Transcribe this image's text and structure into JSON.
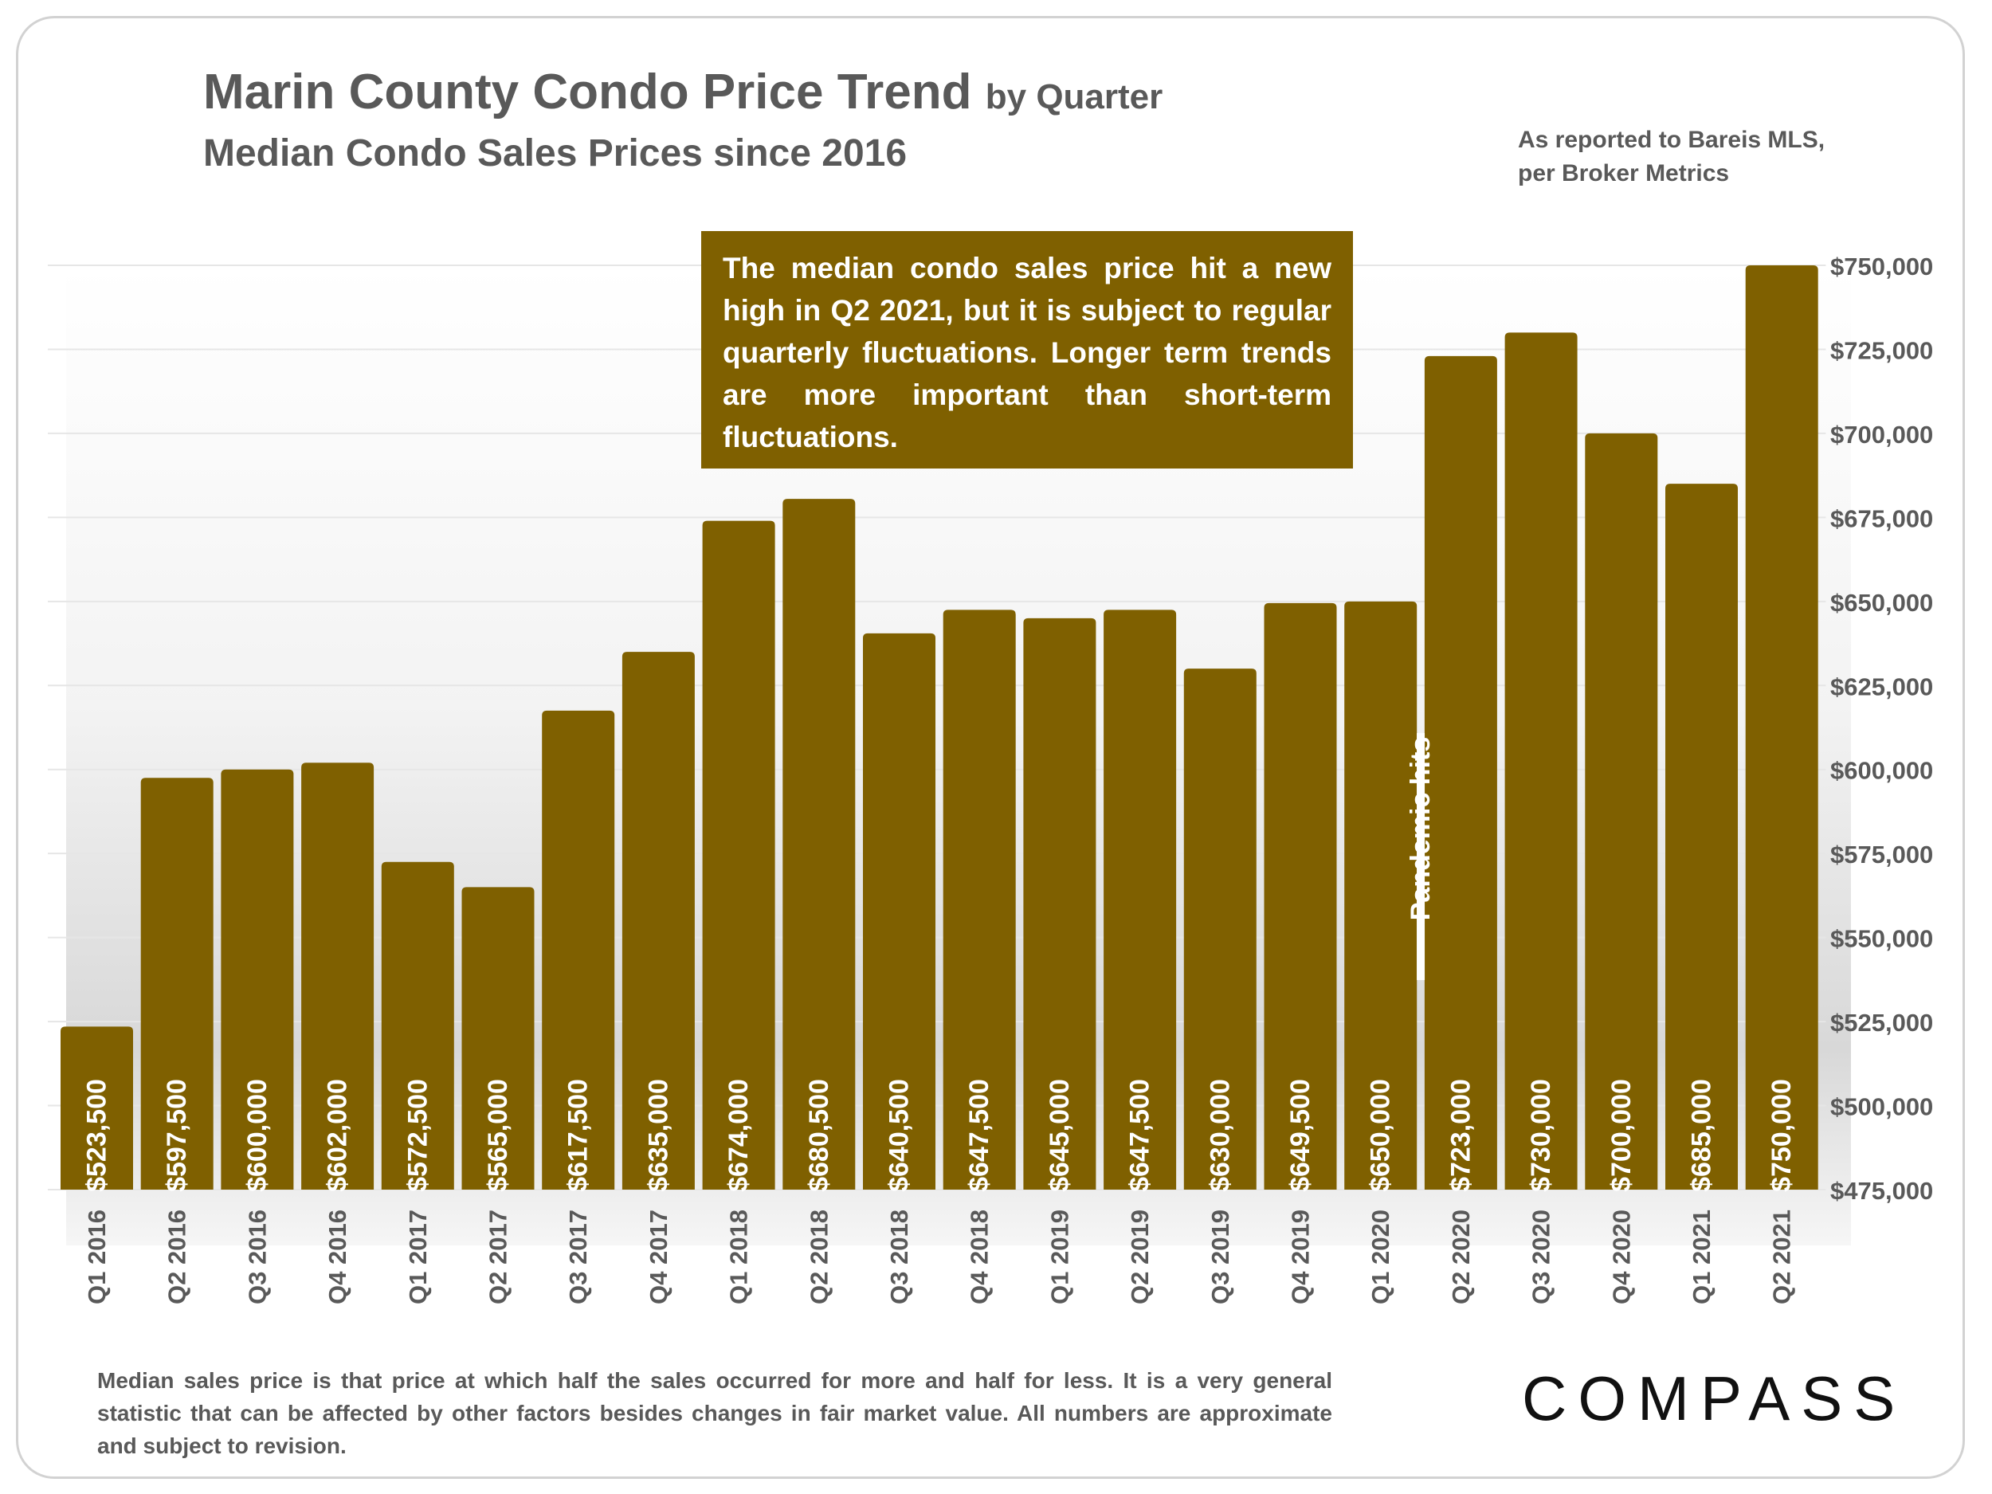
{
  "title": "Marin County Condo Price Trend",
  "title_suffix": "by Quarter",
  "subtitle": "Median Condo Sales Prices since 2016",
  "source_note": "As reported to Bareis MLS, per Broker Metrics",
  "callout": "The median condo sales price hit a new high in Q2 2021, but it is subject to regular quarterly fluctuations. Longer term trends are more important than short-term fluctuations.",
  "footnote": "Median sales price is that price at which half the sales occurred for more and half for less. It is a very general statistic that can be affected by other factors besides changes in fair market value. All numbers are approximate and subject to revision.",
  "logo_text": "COMPASS",
  "chart_data": {
    "type": "bar",
    "categories": [
      "Q1 2016",
      "Q2 2016",
      "Q3 2016",
      "Q4 2016",
      "Q1 2017",
      "Q2 2017",
      "Q3 2017",
      "Q4 2017",
      "Q1 2018",
      "Q2 2018",
      "Q3 2018",
      "Q4 2018",
      "Q1 2019",
      "Q2 2019",
      "Q3 2019",
      "Q4 2019",
      "Q1 2020",
      "Q2 2020",
      "Q3 2020",
      "Q4 2020",
      "Q1 2021",
      "Q2 2021"
    ],
    "values": [
      523500,
      597500,
      600000,
      602000,
      572500,
      565000,
      617500,
      635000,
      674000,
      680500,
      640500,
      647500,
      645000,
      647500,
      630000,
      649500,
      650000,
      723000,
      730000,
      700000,
      685000,
      750000
    ],
    "data_labels": [
      "$523,500",
      "$597,500",
      "$600,000",
      "$602,000",
      "$572,500",
      "$565,000",
      "$617,500",
      "$635,000",
      "$674,000",
      "$680,500",
      "$640,500",
      "$647,500",
      "$645,000",
      "$647,500",
      "$630,000",
      "$649,500",
      "$650,000",
      "$723,000",
      "$730,000",
      "$700,000",
      "$685,000",
      "$750,000"
    ],
    "ylim": [
      475000,
      750000
    ],
    "y_ticks": [
      475000,
      500000,
      525000,
      550000,
      575000,
      600000,
      625000,
      650000,
      675000,
      700000,
      725000,
      750000
    ],
    "y_tick_labels": [
      "$475,000",
      "$500,000",
      "$525,000",
      "$550,000",
      "$575,000",
      "$600,000",
      "$625,000",
      "$650,000",
      "$675,000",
      "$700,000",
      "$725,000",
      "$750,000"
    ],
    "y_axis_position": "right",
    "annotation": {
      "text": "Pandemic hits",
      "between": [
        "Q1 2020",
        "Q2 2020"
      ]
    },
    "grid": true,
    "bar_color": "#7f6000",
    "xlabel": "",
    "ylabel": ""
  }
}
